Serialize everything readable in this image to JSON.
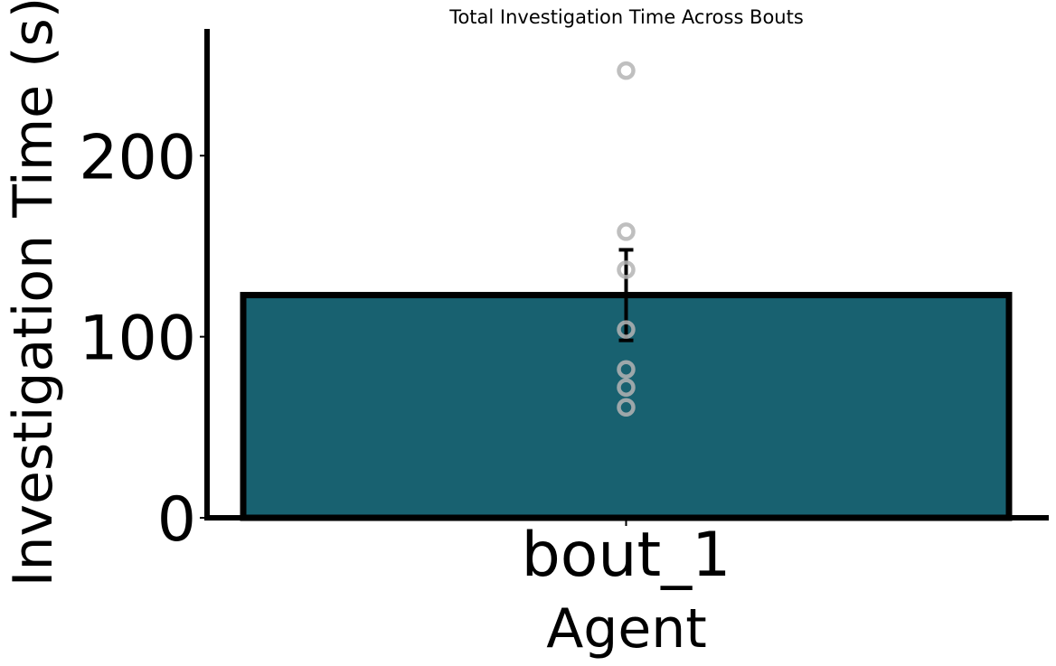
{
  "chart_data": {
    "type": "bar",
    "title": "Total Investigation Time Across Bouts",
    "xlabel": "Agent",
    "ylabel": "Investigation Time (s)",
    "categories": [
      "bout_1"
    ],
    "values": [
      123
    ],
    "error_bars": [
      {
        "lower": 98,
        "upper": 148
      }
    ],
    "points": [
      {
        "category": "bout_1",
        "y": 247
      },
      {
        "category": "bout_1",
        "y": 158
      },
      {
        "category": "bout_1",
        "y": 137
      },
      {
        "category": "bout_1",
        "y": 104
      },
      {
        "category": "bout_1",
        "y": 82
      },
      {
        "category": "bout_1",
        "y": 72
      },
      {
        "category": "bout_1",
        "y": 61
      }
    ],
    "yticks": [
      0,
      100,
      200
    ],
    "ylim": [
      0,
      270
    ],
    "grid": false,
    "legend": "none",
    "colors": {
      "bar_fill": "#186170",
      "bar_edge": "#000000",
      "point_edge": "#b4b4b4",
      "error_bar": "#000000",
      "axis": "#000000"
    }
  }
}
